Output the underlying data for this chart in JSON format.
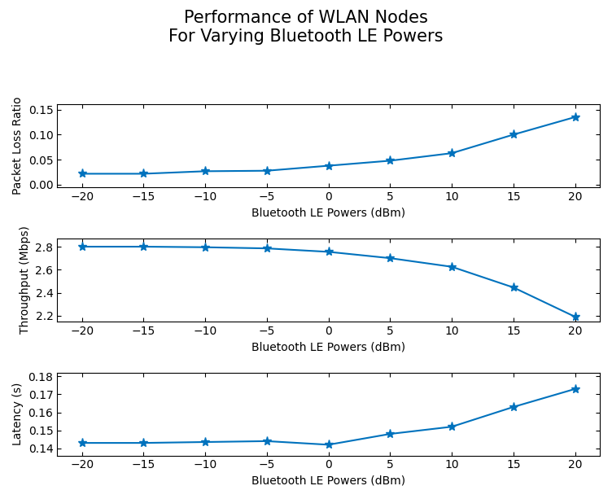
{
  "x": [
    -20,
    -15,
    -10,
    -5,
    0,
    5,
    10,
    15,
    20
  ],
  "plr_y": [
    0.022,
    0.022,
    0.027,
    0.028,
    0.038,
    0.048,
    0.063,
    0.1,
    0.135
  ],
  "tput_y": [
    2.8,
    2.8,
    2.795,
    2.785,
    2.755,
    2.7,
    2.625,
    2.445,
    2.19
  ],
  "lat_y": [
    0.143,
    0.143,
    0.1435,
    0.144,
    0.142,
    0.148,
    0.152,
    0.163,
    0.173
  ],
  "line_color": "#0072BD",
  "marker": "*",
  "markersize": 8,
  "linewidth": 1.5,
  "title": "Performance of WLAN Nodes\nFor Varying Bluetooth LE Powers",
  "title_fontsize": 15,
  "xlabel": "Bluetooth LE Powers (dBm)",
  "xlabel_fontsize": 10,
  "ylabel1": "Packet Loss Ratio",
  "ylabel2": "Throughput (Mbps)",
  "ylabel3": "Latency (s)",
  "ylabel_fontsize": 10,
  "xticks": [
    -20,
    -15,
    -10,
    -5,
    0,
    5,
    10,
    15,
    20
  ],
  "plr_ylim": [
    -0.005,
    0.16
  ],
  "plr_yticks": [
    0,
    0.05,
    0.1,
    0.15
  ],
  "tput_ylim": [
    2.15,
    2.87
  ],
  "tput_yticks": [
    2.2,
    2.4,
    2.6,
    2.8
  ],
  "lat_ylim": [
    0.136,
    0.182
  ],
  "lat_yticks": [
    0.14,
    0.15,
    0.16,
    0.17,
    0.18
  ],
  "bg_color": "#ffffff",
  "tick_fontsize": 10
}
